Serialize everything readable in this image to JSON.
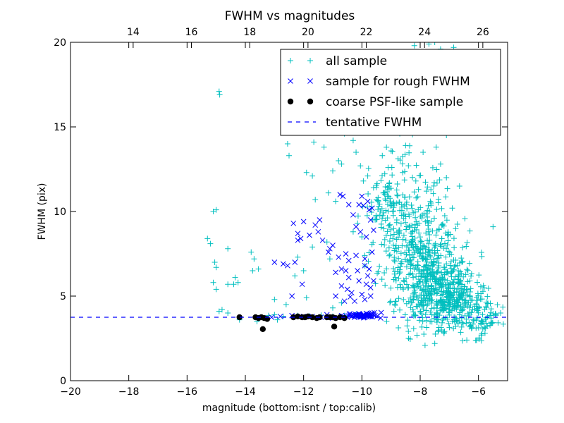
{
  "chart_data": {
    "type": "scatter",
    "title": "FWHM vs magnitudes",
    "xlabel": "magnitude (bottom:isnt / top:calib)",
    "ylabel": "FWHM (pix)",
    "xlim": [
      -20,
      -5
    ],
    "ylim": [
      0,
      20
    ],
    "x_ticks": [
      -20,
      -18,
      -16,
      -14,
      -12,
      -10,
      -8,
      -6
    ],
    "x_tick_labels": [
      "−20",
      "−18",
      "−16",
      "−14",
      "−12",
      "−10",
      "−8",
      "−6"
    ],
    "y_ticks": [
      0,
      5,
      10,
      15,
      20
    ],
    "y_tick_labels": [
      "0",
      "5",
      "10",
      "15",
      "20"
    ],
    "top_axis": {
      "offset": 31.85,
      "ticks": [
        14,
        16,
        18,
        20,
        22,
        24,
        26
      ],
      "tick_labels": [
        "14",
        "16",
        "18",
        "20",
        "22",
        "24",
        "26"
      ]
    },
    "grid": false,
    "legend_position": "top-right",
    "colors": {
      "all_sample": "#00bfbf",
      "rough_sample": "#0000ff",
      "psf_sample": "#000000",
      "tentative_fwhm": "#0000ff"
    },
    "series": [
      {
        "name": "all sample",
        "marker": "plus",
        "points": [
          [
            -14.9,
            17.1
          ],
          [
            -14.88,
            16.9
          ],
          [
            -15.0,
            10.1
          ],
          [
            -15.1,
            10.0
          ],
          [
            -15.3,
            8.4
          ],
          [
            -15.2,
            8.1
          ],
          [
            -15.05,
            7.0
          ],
          [
            -15.0,
            6.7
          ],
          [
            -14.6,
            7.8
          ],
          [
            -14.35,
            6.1
          ],
          [
            -14.25,
            5.8
          ],
          [
            -13.8,
            7.6
          ],
          [
            -13.7,
            7.2
          ],
          [
            -13.55,
            6.6
          ],
          [
            -13.75,
            6.5
          ],
          [
            -15.1,
            5.8
          ],
          [
            -15.0,
            5.4
          ],
          [
            -14.6,
            5.7
          ],
          [
            -14.4,
            5.7
          ],
          [
            -14.8,
            4.2
          ],
          [
            -14.6,
            4.0
          ],
          [
            -14.9,
            4.1
          ],
          [
            -12.55,
            14.0
          ],
          [
            -12.5,
            13.3
          ],
          [
            -11.9,
            12.3
          ],
          [
            -11.7,
            12.1
          ],
          [
            -11.65,
            14.1
          ],
          [
            -11.3,
            13.8
          ],
          [
            -11.0,
            12.4
          ],
          [
            -10.8,
            13.0
          ],
          [
            -10.7,
            12.8
          ],
          [
            -10.6,
            14.6
          ],
          [
            -10.3,
            14.2
          ],
          [
            -10.2,
            13.5
          ],
          [
            -10.05,
            12.7
          ],
          [
            -9.95,
            11.8
          ],
          [
            -9.8,
            12.1
          ],
          [
            -9.6,
            11.4
          ],
          [
            -11.6,
            10.7
          ],
          [
            -11.15,
            11.1
          ],
          [
            -10.9,
            10.6
          ],
          [
            -12.2,
            7.3
          ],
          [
            -12.0,
            6.5
          ],
          [
            -12.3,
            6.2
          ],
          [
            -11.7,
            7.9
          ],
          [
            -11.2,
            8.2
          ],
          [
            -11.1,
            7.2
          ],
          [
            -10.3,
            8.8
          ],
          [
            -10.15,
            9.3
          ],
          [
            -10.0,
            8.5
          ],
          [
            -9.9,
            7.4
          ],
          [
            -13.0,
            4.8
          ],
          [
            -12.6,
            4.5
          ],
          [
            -11.9,
            4.9
          ],
          [
            -11.0,
            4.3
          ],
          [
            -10.7,
            4.6
          ],
          [
            -13.2,
            3.85
          ],
          [
            -13.0,
            3.9
          ],
          [
            -12.7,
            3.8
          ],
          [
            -12.2,
            3.85
          ],
          [
            -11.8,
            3.82
          ],
          [
            -11.4,
            3.87
          ],
          [
            -11.0,
            3.8
          ],
          [
            -10.6,
            3.85
          ],
          [
            -10.2,
            3.9
          ],
          [
            -14.2,
            3.6
          ],
          [
            -13.6,
            3.5
          ],
          [
            -12.9,
            3.6
          ],
          [
            -8.4,
            2.5
          ],
          [
            -7.5,
            2.2
          ],
          [
            -6.4,
            2.4
          ],
          [
            -5.9,
            2.7
          ],
          [
            -5.5,
            9.1
          ],
          [
            -6.9,
            10.2
          ],
          [
            -6.65,
            11.5
          ],
          [
            -7.1,
            12.0
          ],
          [
            -8.2,
            19.8
          ],
          [
            -7.7,
            19.9
          ],
          [
            -7.5,
            20.0
          ],
          [
            -7.3,
            19.6
          ],
          [
            -6.85,
            19.7
          ],
          [
            -7.9,
            18.9
          ],
          [
            -8.0,
            18.4
          ],
          [
            -7.3,
            18.8
          ],
          [
            -7.6,
            17.8
          ],
          [
            -8.05,
            16.8
          ],
          [
            -7.75,
            17.0
          ],
          [
            -8.3,
            15.8
          ],
          [
            -7.55,
            15.3
          ],
          [
            -6.9,
            15.0
          ],
          [
            -7.1,
            14.5
          ],
          [
            -8.7,
            14.6
          ],
          [
            -9.0,
            14.9
          ],
          [
            -8.5,
            13.9
          ],
          [
            -7.9,
            13.5
          ],
          [
            -7.45,
            13.8
          ],
          [
            -9.3,
            13.3
          ],
          [
            -9.1,
            12.6
          ],
          [
            -8.6,
            12.3
          ],
          [
            -7.3,
            12.8
          ],
          [
            -8.15,
            11.8
          ]
        ],
        "clusters": [
          {
            "center": [
              -7.4,
              5.4
            ],
            "spread": [
              0.65,
              1.1
            ],
            "count": 380,
            "seed": 11
          },
          {
            "center": [
              -8.0,
              7.2
            ],
            "spread": [
              0.7,
              1.6
            ],
            "count": 260,
            "seed": 23
          },
          {
            "center": [
              -8.4,
              9.2
            ],
            "spread": [
              0.6,
              1.3
            ],
            "count": 110,
            "seed": 37
          },
          {
            "center": [
              -6.6,
              4.4
            ],
            "spread": [
              0.55,
              0.8
            ],
            "count": 150,
            "seed": 41
          },
          {
            "center": [
              -9.2,
              10.2
            ],
            "spread": [
              0.35,
              0.9
            ],
            "count": 45,
            "seed": 53
          },
          {
            "center": [
              -8.6,
              11.5
            ],
            "spread": [
              0.7,
              1.2
            ],
            "count": 55,
            "seed": 67
          },
          {
            "center": [
              -5.8,
              3.6
            ],
            "spread": [
              0.35,
              0.6
            ],
            "count": 50,
            "seed": 71
          }
        ]
      },
      {
        "name": "sample for rough FWHM",
        "marker": "x",
        "points": [
          [
            -12.35,
            9.3
          ],
          [
            -12.0,
            9.4
          ],
          [
            -11.6,
            9.2
          ],
          [
            -11.45,
            9.5
          ],
          [
            -11.5,
            8.8
          ],
          [
            -11.8,
            8.6
          ],
          [
            -12.2,
            8.7
          ],
          [
            -11.35,
            8.3
          ],
          [
            -11.1,
            7.8
          ],
          [
            -12.1,
            8.4
          ],
          [
            -12.2,
            8.3
          ],
          [
            -13.0,
            7.0
          ],
          [
            -12.7,
            6.9
          ],
          [
            -12.55,
            6.8
          ],
          [
            -12.3,
            7.0
          ],
          [
            -12.4,
            5.0
          ],
          [
            -12.05,
            5.7
          ],
          [
            -11.0,
            8.0
          ],
          [
            -11.15,
            7.6
          ],
          [
            -10.9,
            6.4
          ],
          [
            -10.55,
            6.5
          ],
          [
            -10.45,
            6.1
          ],
          [
            -10.7,
            5.6
          ],
          [
            -10.5,
            5.4
          ],
          [
            -10.9,
            5.0
          ],
          [
            -10.6,
            4.7
          ],
          [
            -10.4,
            4.95
          ],
          [
            -10.75,
            11.0
          ],
          [
            -10.65,
            10.9
          ],
          [
            -10.45,
            10.4
          ],
          [
            -10.3,
            9.8
          ],
          [
            -10.2,
            9.1
          ],
          [
            -10.1,
            10.4
          ],
          [
            -10.0,
            10.9
          ],
          [
            -9.95,
            10.35
          ],
          [
            -9.8,
            10.6
          ],
          [
            -9.75,
            10.1
          ],
          [
            -9.7,
            9.5
          ],
          [
            -9.65,
            10.2
          ],
          [
            -10.05,
            8.8
          ],
          [
            -9.85,
            8.5
          ],
          [
            -9.9,
            7.2
          ],
          [
            -9.65,
            7.6
          ],
          [
            -9.6,
            8.9
          ],
          [
            -10.2,
            7.4
          ],
          [
            -9.9,
            6.8
          ],
          [
            -10.15,
            6.5
          ],
          [
            -9.8,
            6.2
          ],
          [
            -10.1,
            5.9
          ],
          [
            -9.85,
            5.7
          ],
          [
            -9.7,
            5.5
          ],
          [
            -10.35,
            5.2
          ],
          [
            -10.0,
            5.1
          ],
          [
            -9.7,
            5.0
          ],
          [
            -9.9,
            4.8
          ],
          [
            -10.25,
            4.7
          ],
          [
            -9.6,
            5.9
          ],
          [
            -9.75,
            6.6
          ],
          [
            -10.7,
            6.6
          ],
          [
            -10.55,
            7.5
          ],
          [
            -10.45,
            7.1
          ],
          [
            -10.8,
            7.3
          ],
          [
            -11.7,
            3.8
          ],
          [
            -11.2,
            3.9
          ],
          [
            -10.7,
            3.85
          ],
          [
            -10.3,
            3.9
          ],
          [
            -10.1,
            3.95
          ],
          [
            -9.95,
            3.85
          ],
          [
            -9.8,
            3.9
          ],
          [
            -9.7,
            3.8
          ],
          [
            -9.6,
            3.9
          ],
          [
            -9.55,
            3.85
          ],
          [
            -10.5,
            3.75
          ],
          [
            -10.2,
            3.8
          ],
          [
            -9.9,
            3.75
          ],
          [
            -9.65,
            4.0
          ],
          [
            -9.85,
            3.98
          ],
          [
            -10.4,
            3.95
          ],
          [
            -11.0,
            3.7
          ],
          [
            -11.4,
            3.75
          ],
          [
            -12.0,
            3.8
          ],
          [
            -12.4,
            3.85
          ],
          [
            -12.8,
            3.8
          ],
          [
            -13.1,
            3.75
          ]
        ],
        "clusters": [
          {
            "center": [
              -9.95,
              3.85
            ],
            "spread": [
              0.25,
              0.07
            ],
            "count": 55,
            "seed": 83
          }
        ]
      },
      {
        "name": "coarse PSF-like sample",
        "marker": "circle",
        "points": [
          [
            -14.2,
            3.75
          ],
          [
            -13.65,
            3.75
          ],
          [
            -13.55,
            3.7
          ],
          [
            -13.45,
            3.75
          ],
          [
            -13.35,
            3.7
          ],
          [
            -13.25,
            3.65
          ],
          [
            -13.4,
            3.05
          ],
          [
            -12.35,
            3.75
          ],
          [
            -12.2,
            3.8
          ],
          [
            -12.05,
            3.75
          ],
          [
            -11.95,
            3.75
          ],
          [
            -11.85,
            3.8
          ],
          [
            -11.7,
            3.75
          ],
          [
            -11.55,
            3.7
          ],
          [
            -11.45,
            3.75
          ],
          [
            -11.2,
            3.75
          ],
          [
            -11.1,
            3.75
          ],
          [
            -11.0,
            3.75
          ],
          [
            -10.9,
            3.7
          ],
          [
            -10.75,
            3.75
          ],
          [
            -10.6,
            3.7
          ],
          [
            -10.95,
            3.2
          ]
        ]
      },
      {
        "name": "tentative FWHM",
        "marker": "dashed-line",
        "y": 3.75
      }
    ]
  }
}
